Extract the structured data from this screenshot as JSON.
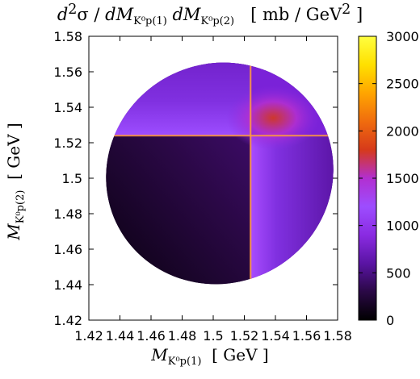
{
  "chart_data": {
    "type": "heatmap",
    "title": "d²σ / dM_{K⁰p(1)} dM_{K⁰p(2)}   [ mb / GeV² ]",
    "title_parts": {
      "prefix": "d",
      "sup2": "2",
      "sigma": "σ / ",
      "dM1": "dM",
      "dM1_sub": "K⁰p(1)",
      "space": " ",
      "dM2": "dM",
      "dM2_sub": "K⁰p(2)",
      "units": "[ mb / GeV",
      "units_sup": "2",
      "units_close": " ]"
    },
    "xlabel": "M_{K⁰p(1)} [ GeV ]",
    "xlabel_parts": {
      "m": "M",
      "sub": "K⁰p(1)",
      "unit": "[ GeV ]"
    },
    "ylabel": "M_{K⁰p(2)} [ GeV ]",
    "ylabel_parts": {
      "m": "M",
      "sub": "K⁰p(2)",
      "unit": "[ GeV ]"
    },
    "xlim": [
      1.42,
      1.58
    ],
    "ylim": [
      1.42,
      1.58
    ],
    "xticks": [
      "1.42",
      "1.44",
      "1.46",
      "1.48",
      "1.5",
      "1.52",
      "1.54",
      "1.56",
      "1.58"
    ],
    "yticks": [
      "1.42",
      "1.44",
      "1.46",
      "1.48",
      "1.5",
      "1.52",
      "1.54",
      "1.56",
      "1.58"
    ],
    "colorbar": {
      "range": [
        0,
        3000
      ],
      "ticks": [
        "0",
        "500",
        "1000",
        "1500",
        "2000",
        "2500",
        "3000"
      ],
      "palette": [
        "#000000",
        "#2a0845",
        "#5a14a4",
        "#8a2be2",
        "#9d4dff",
        "#b22fd0",
        "#d63a1a",
        "#f06c0e",
        "#ffa500",
        "#ffe000",
        "#ffff40"
      ]
    },
    "resonance_band": {
      "mass": 1.524,
      "description_in_plot": ""
    },
    "grid": false,
    "legend": "colorbar-right"
  }
}
